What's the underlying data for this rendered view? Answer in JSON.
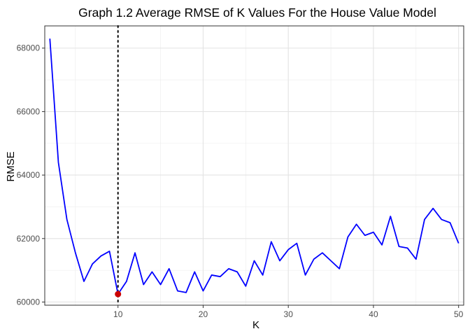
{
  "chart_data": {
    "type": "line",
    "title": "Graph 1.2 Average RMSE of K Values For the House Value Model",
    "xlabel": "K",
    "ylabel": "RMSE",
    "xlim": [
      1.4,
      50.6
    ],
    "ylim": [
      59900,
      68700
    ],
    "x_ticks": [
      10,
      20,
      30,
      40,
      50
    ],
    "y_ticks": [
      60000,
      62000,
      64000,
      66000,
      68000
    ],
    "x_tick_labels": [
      "10",
      "20",
      "30",
      "40",
      "50"
    ],
    "y_tick_labels": [
      "60000",
      "62000",
      "64000",
      "66000",
      "68000"
    ],
    "grid": true,
    "series": [
      {
        "name": "Average RMSE",
        "color": "#0000ff",
        "x": [
          2,
          3,
          4,
          5,
          6,
          7,
          8,
          9,
          10,
          11,
          12,
          13,
          14,
          15,
          16,
          17,
          18,
          19,
          20,
          21,
          22,
          23,
          24,
          25,
          26,
          27,
          28,
          29,
          30,
          31,
          32,
          33,
          34,
          35,
          36,
          37,
          38,
          39,
          40,
          41,
          42,
          43,
          44,
          45,
          46,
          47,
          48,
          49,
          50
        ],
        "values": [
          68300,
          64400,
          62600,
          61550,
          60650,
          61200,
          61450,
          61600,
          60250,
          60650,
          61550,
          60550,
          60950,
          60550,
          61050,
          60350,
          60300,
          60950,
          60350,
          60850,
          60800,
          61050,
          60950,
          60500,
          61300,
          60850,
          61900,
          61300,
          61650,
          61850,
          60850,
          61350,
          61550,
          61300,
          61050,
          62050,
          62450,
          62100,
          62200,
          61800,
          62700,
          61750,
          61700,
          61350,
          62600,
          62950,
          62600,
          62500,
          61850
        ]
      }
    ],
    "optimal_point": {
      "x": 10,
      "y": 60250,
      "color": "#cc0000"
    },
    "vline": {
      "x": 10,
      "style": "dotted",
      "color": "#000000"
    }
  }
}
